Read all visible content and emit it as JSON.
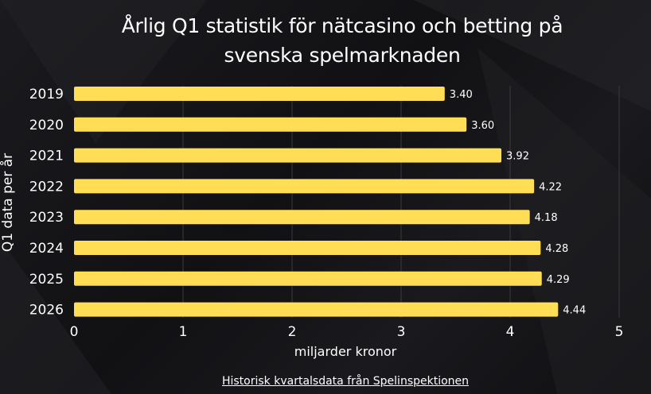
{
  "chart_data": {
    "type": "bar",
    "orientation": "horizontal",
    "title": "Årlig Q1 statistik för nätcasino och betting på svenska spelmarknaden",
    "xlabel": "miljarder kronor",
    "ylabel": "Q1 data per år",
    "categories": [
      "2019",
      "2020",
      "2021",
      "2022",
      "2023",
      "2024",
      "2025",
      "2026"
    ],
    "values": [
      3.4,
      3.6,
      3.92,
      4.22,
      4.18,
      4.28,
      4.29,
      4.44
    ],
    "value_labels": [
      "3.40",
      "3.60",
      "3.92",
      "4.22",
      "4.18",
      "4.28",
      "4.29",
      "4.44"
    ],
    "xlim": [
      0,
      5
    ],
    "xticks": [
      "0",
      "1",
      "2",
      "3",
      "4",
      "5"
    ],
    "grid": "vertical",
    "bar_color": "#ffdd55"
  },
  "footer": {
    "source_label": "Historisk kvartalsdata från Spelinspektionen"
  }
}
